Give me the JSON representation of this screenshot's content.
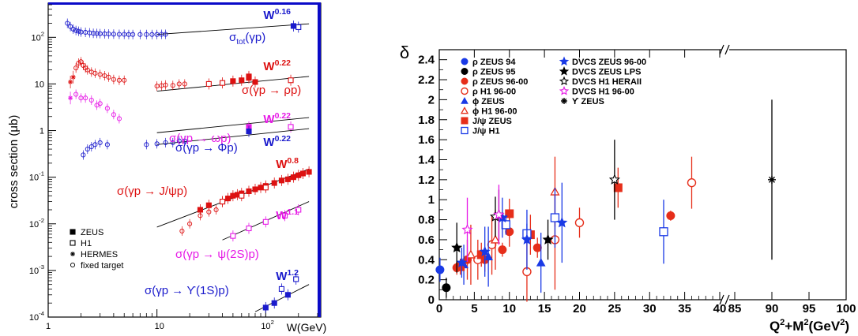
{
  "chart_data": [
    {
      "type": "scatter",
      "ylabel": "cross section (μb)",
      "xlabel": "W(GeV)",
      "x_scale": "log",
      "y_scale": "log",
      "xlim": [
        1,
        300
      ],
      "ylim": [
        0.0001,
        500
      ],
      "x_ticks": [
        {
          "v": 1,
          "label": "1"
        },
        {
          "v": 10,
          "label": "10"
        },
        {
          "v": 100,
          "label": "10",
          "sup": "2"
        }
      ],
      "y_ticks": [
        {
          "v": 0.0001,
          "label": "10",
          "sup": "-4"
        },
        {
          "v": 0.001,
          "label": "10",
          "sup": "-3"
        },
        {
          "v": 0.01,
          "label": "10",
          "sup": "-2"
        },
        {
          "v": 0.1,
          "label": "10",
          "sup": "-1"
        },
        {
          "v": 1,
          "label": "1"
        },
        {
          "v": 10,
          "label": "10"
        },
        {
          "v": 100,
          "label": "10",
          "sup": "2"
        }
      ],
      "legend": {
        "placement": "bottom-left",
        "entries": [
          {
            "marker": "filled-square",
            "label": "ZEUS"
          },
          {
            "marker": "open-square",
            "label": "H1"
          },
          {
            "marker": "star",
            "label": "HERMES"
          },
          {
            "marker": "open-circle",
            "label": "fixed target"
          }
        ]
      },
      "series": [
        {
          "process": "σ_tot(γp)",
          "label_main": "σ",
          "label_sub": "tot",
          "label_rest": "(γp)",
          "color": "#1a1acc",
          "power_label": "W",
          "power": "0.16",
          "fit": {
            "x": [
              10,
              250
            ],
            "y": [
              115,
              195
            ]
          },
          "fixed_target": [
            [
              1.5,
              200
            ],
            [
              1.6,
              170
            ],
            [
              1.7,
              150
            ],
            [
              1.8,
              140
            ],
            [
              1.9,
              135
            ],
            [
              2.0,
              130
            ],
            [
              2.2,
              128
            ],
            [
              2.4,
              125
            ],
            [
              2.6,
              122
            ],
            [
              2.8,
              121
            ],
            [
              3.0,
              120
            ],
            [
              3.3,
              119
            ],
            [
              3.6,
              118
            ],
            [
              4.0,
              117
            ],
            [
              4.5,
              116
            ],
            [
              5.0,
              116
            ],
            [
              5.5,
              115
            ],
            [
              6.0,
              115
            ],
            [
              7.0,
              115
            ],
            [
              8.0,
              115
            ],
            [
              9.0,
              115
            ],
            [
              10,
              115
            ],
            [
              11,
              116
            ],
            [
              12,
              116
            ]
          ],
          "zeus": [
            [
              180,
              175
            ]
          ],
          "h1": [
            [
              200,
              165
            ]
          ]
        },
        {
          "process": "σ(γp → ρp)",
          "label_main": "σ(γp → ρp)",
          "color": "#dd1111",
          "power_label": "W",
          "power": "0.22",
          "fit": {
            "x": [
              10,
              250
            ],
            "y": [
              7,
              14.5
            ]
          },
          "fixed_target": [
            [
              1.8,
              22
            ],
            [
              1.9,
              28
            ],
            [
              2.0,
              30
            ],
            [
              2.1,
              25
            ],
            [
              2.2,
              22
            ],
            [
              2.3,
              20
            ],
            [
              2.5,
              18
            ],
            [
              2.7,
              17
            ],
            [
              3.0,
              16
            ],
            [
              3.3,
              15
            ],
            [
              3.6,
              14
            ],
            [
              4.0,
              12.5
            ],
            [
              4.5,
              12
            ],
            [
              5.0,
              12
            ],
            [
              10,
              9
            ],
            [
              11,
              9.2
            ],
            [
              12,
              9.5
            ],
            [
              14,
              9.3
            ],
            [
              16,
              10
            ],
            [
              18,
              10
            ]
          ],
          "hermes": [
            [
              1.6,
              11
            ],
            [
              1.7,
              14
            ]
          ],
          "zeus": [
            [
              50,
              11.5
            ],
            [
              60,
              12
            ],
            [
              70,
              13.5
            ],
            [
              70,
              14.5
            ],
            [
              80,
              11
            ]
          ],
          "h1": [
            [
              30,
              10
            ],
            [
              40,
              10.5
            ],
            [
              170,
              12
            ]
          ]
        },
        {
          "process": "σ(γp → ωp)",
          "label_main": "σ(γp → ωp)",
          "color": "#e619e6",
          "power_label": "W",
          "power": "0.22",
          "fit": {
            "x": [
              10,
              250
            ],
            "y": [
              0.9,
              1.9
            ]
          },
          "fixed_target": [
            [
              1.8,
              6
            ],
            [
              2.0,
              5
            ],
            [
              2.2,
              5
            ],
            [
              2.5,
              4.5
            ],
            [
              2.8,
              3.5
            ],
            [
              3.0,
              3.8
            ],
            [
              3.5,
              3
            ],
            [
              4.0,
              2.2
            ],
            [
              4.5,
              1.8
            ]
          ],
          "hermes": [
            [
              1.6,
              5
            ]
          ],
          "zeus": [
            [
              70,
              1.2
            ]
          ],
          "h1": [
            [
              170,
              1.2
            ]
          ]
        },
        {
          "process": "σ(γp → φp)",
          "label_main": "σ(γp → Φp)",
          "color": "#1a1acc",
          "power_label": "W",
          "power": "0.22",
          "fit": {
            "x": [
              10,
              250
            ],
            "y": [
              0.5,
              1.1
            ]
          },
          "fixed_target": [
            [
              2.1,
              0.3
            ],
            [
              2.3,
              0.4
            ],
            [
              2.5,
              0.45
            ],
            [
              2.7,
              0.5
            ],
            [
              3.0,
              0.55
            ],
            [
              3.5,
              0.5
            ],
            [
              8,
              0.5
            ],
            [
              10,
              0.52
            ],
            [
              12,
              0.55
            ],
            [
              14,
              0.55
            ],
            [
              16,
              0.6
            ],
            [
              18,
              0.6
            ]
          ],
          "zeus": [
            [
              70,
              0.96
            ]
          ],
          "h1": []
        },
        {
          "process": "σ(γp → J/ψp)",
          "label_main": "σ(γp → J/ψp)",
          "color": "#dd1111",
          "power_label": "W",
          "power": "0.8",
          "fit": {
            "x": [
              10,
              250
            ],
            "y": [
              0.0085,
              0.15
            ]
          },
          "fixed_target": [
            [
              17,
              0.007
            ],
            [
              20,
              0.01
            ],
            [
              25,
              0.015
            ],
            [
              30,
              0.018
            ],
            [
              35,
              0.02
            ]
          ],
          "zeus": [
            [
              25,
              0.02
            ],
            [
              30,
              0.025
            ],
            [
              40,
              0.03
            ],
            [
              45,
              0.035
            ],
            [
              50,
              0.04
            ],
            [
              55,
              0.042
            ],
            [
              60,
              0.045
            ],
            [
              70,
              0.05
            ],
            [
              80,
              0.055
            ],
            [
              90,
              0.06
            ],
            [
              100,
              0.065
            ],
            [
              120,
              0.075
            ],
            [
              140,
              0.085
            ],
            [
              160,
              0.09
            ],
            [
              180,
              0.1
            ],
            [
              200,
              0.11
            ],
            [
              220,
              0.12
            ],
            [
              250,
              0.13
            ]
          ],
          "h1": [
            [
              40,
              0.03
            ],
            [
              60,
              0.04
            ],
            [
              100,
              0.06
            ]
          ]
        },
        {
          "process": "σ(γp → ψ(2S)p)",
          "label_main": "σ(γp → ψ(2S)p)",
          "color": "#e619e6",
          "power_label": "W",
          "power": "1.1",
          "fit": {
            "x": [
              40,
              250
            ],
            "y": [
              0.0045,
              0.03
            ]
          },
          "zeus": [],
          "h1": [
            [
              50,
              0.0055
            ],
            [
              70,
              0.008
            ],
            [
              100,
              0.011
            ],
            [
              150,
              0.015
            ],
            [
              200,
              0.02
            ]
          ]
        },
        {
          "process": "σ(γp → Υ(1S)p)",
          "label_main": "σ(γp → ϒ(1S)p)",
          "color": "#1a1acc",
          "power_label": "W",
          "power": "1.2",
          "fit": {
            "x": [
              80,
              250
            ],
            "y": [
              0.00013,
              0.0005
            ]
          },
          "zeus": [
            [
              100,
              0.00016
            ],
            [
              120,
              0.0002
            ],
            [
              160,
              0.0003
            ]
          ],
          "h1": [
            [
              140,
              0.0004
            ],
            [
              190,
              0.00065
            ]
          ]
        }
      ]
    },
    {
      "type": "scatter",
      "ylabel": "δ",
      "xlabel": "Q²+M²(GeV²)",
      "xlabel_parts": {
        "main": "Q",
        "sup1": "2",
        "mid": "+M",
        "sup2": "2",
        "rest": "(GeV",
        "sup3": "2",
        "end": ")"
      },
      "ylim": [
        0,
        2.5
      ],
      "x_break": {
        "left_range": [
          0,
          40
        ],
        "right_range": [
          80,
          100
        ]
      },
      "y_ticks": [
        "0",
        "0.2",
        "0.4",
        "0.6",
        "0.8",
        "1",
        "1.2",
        "1.4",
        "1.6",
        "1.8",
        "2",
        "2.2",
        "2.4"
      ],
      "x_ticks_left": [
        "0",
        "5",
        "10",
        "15",
        "20",
        "25",
        "30",
        "35",
        "40"
      ],
      "x_ticks_right": [
        "85",
        "90",
        "95",
        "100"
      ],
      "legend": {
        "placement": "top-left",
        "entries": [
          {
            "marker": "filled-circle",
            "color": "#1a3ae6",
            "label": "ρ ZEUS 94"
          },
          {
            "marker": "filled-circle",
            "color": "#000000",
            "label": "ρ ZEUS 95"
          },
          {
            "marker": "filled-circle",
            "color": "#e62e1a",
            "label": "ρ ZEUS 96-00"
          },
          {
            "marker": "open-circle",
            "color": "#e62e1a",
            "label": "ρ H1 96-00"
          },
          {
            "marker": "filled-triangle",
            "color": "#1a3ae6",
            "label": "ϕ ZEUS"
          },
          {
            "marker": "open-triangle",
            "color": "#e62e1a",
            "label": "ϕ H1 96-00"
          },
          {
            "marker": "filled-square",
            "color": "#e62e1a",
            "label": "J/ψ ZEUS"
          },
          {
            "marker": "open-square",
            "color": "#1a3ae6",
            "label": "J/ψ H1"
          },
          {
            "marker": "filled-star",
            "color": "#1a3ae6",
            "label": "DVCS ZEUS 96-00"
          },
          {
            "marker": "filled-star",
            "color": "#000000",
            "label": "DVCS ZEUS LPS"
          },
          {
            "marker": "open-star",
            "color": "#000000",
            "label": "DVCS H1 HERAII"
          },
          {
            "marker": "open-star",
            "color": "#e619e6",
            "label": "DVCS H1 96-00"
          },
          {
            "marker": "asterisk",
            "color": "#000000",
            "label": "ϒ ZEUS"
          }
        ]
      },
      "points": [
        {
          "s": 0,
          "x": 0.1,
          "y": 0.3,
          "e": 0.12
        },
        {
          "s": 1,
          "x": 1.0,
          "y": 0.12,
          "e": 0.1
        },
        {
          "s": 2,
          "x": 2.5,
          "y": 0.32,
          "e": 0.07
        },
        {
          "s": 2,
          "x": 4.0,
          "y": 0.4,
          "e": 0.2
        },
        {
          "s": 2,
          "x": 6.5,
          "y": 0.4,
          "e": 0.12
        },
        {
          "s": 2,
          "x": 9.0,
          "y": 0.5,
          "e": 0.07
        },
        {
          "s": 2,
          "x": 10.0,
          "y": 0.68,
          "e": 0.15
        },
        {
          "s": 2,
          "x": 14.0,
          "y": 0.52,
          "e": 0.1
        },
        {
          "s": 2,
          "x": 33.0,
          "y": 0.84,
          "e": 0.05
        },
        {
          "s": 3,
          "x": 5.5,
          "y": 0.4,
          "e": 0.2
        },
        {
          "s": 3,
          "x": 7.5,
          "y": 0.55,
          "e": 0.3
        },
        {
          "s": 3,
          "x": 12.5,
          "y": 0.28,
          "e": 0.3
        },
        {
          "s": 3,
          "x": 16.5,
          "y": 0.6,
          "e": 0.5
        },
        {
          "s": 3,
          "x": 20.0,
          "y": 0.77,
          "e": 0.15
        },
        {
          "s": 3,
          "x": 36.0,
          "y": 1.17,
          "e": 0.26
        },
        {
          "s": 4,
          "x": 3.5,
          "y": 0.35,
          "e": 0.2
        },
        {
          "s": 4,
          "x": 7.0,
          "y": 0.43,
          "e": 0.3
        },
        {
          "s": 4,
          "x": 14.5,
          "y": 0.37,
          "e": 0.3
        },
        {
          "s": 5,
          "x": 4.5,
          "y": 0.45,
          "e": 0.3
        },
        {
          "s": 5,
          "x": 8.0,
          "y": 0.6,
          "e": 0.3
        },
        {
          "s": 5,
          "x": 16.5,
          "y": 1.08,
          "e": 0.35
        },
        {
          "s": 6,
          "x": 3.0,
          "y": 0.33,
          "e": 0.08
        },
        {
          "s": 6,
          "x": 6.0,
          "y": 0.45,
          "e": 0.12
        },
        {
          "s": 6,
          "x": 10.0,
          "y": 0.86,
          "e": 0.15
        },
        {
          "s": 6,
          "x": 13.0,
          "y": 0.65,
          "e": 0.2
        },
        {
          "s": 6,
          "x": 25.5,
          "y": 1.12,
          "e": 0.2
        },
        {
          "s": 7,
          "x": 9.5,
          "y": 0.75,
          "e": 0.1
        },
        {
          "s": 7,
          "x": 12.5,
          "y": 0.66,
          "e": 0.1
        },
        {
          "s": 7,
          "x": 16.5,
          "y": 0.82,
          "e": 0.3
        },
        {
          "s": 7,
          "x": 32.0,
          "y": 0.68,
          "e": 0.32
        },
        {
          "s": 8,
          "x": 3.2,
          "y": 0.37,
          "e": 0.15
        },
        {
          "s": 8,
          "x": 6.5,
          "y": 0.48,
          "e": 0.25
        },
        {
          "s": 8,
          "x": 9.0,
          "y": 0.82,
          "e": 0.2
        },
        {
          "s": 8,
          "x": 12.5,
          "y": 0.6,
          "e": 0.3
        },
        {
          "s": 8,
          "x": 17.5,
          "y": 0.77,
          "e": 0.4
        },
        {
          "s": 9,
          "x": 2.5,
          "y": 0.52,
          "e": 0.25
        },
        {
          "s": 9,
          "x": 8.5,
          "y": 0.85,
          "e": 0.25
        },
        {
          "s": 9,
          "x": 15.5,
          "y": 0.6,
          "e": 0.2
        },
        {
          "s": 10,
          "x": 8.0,
          "y": 0.83,
          "e": 0.2
        },
        {
          "s": 10,
          "x": 25.0,
          "y": 1.2,
          "e": 0.4
        },
        {
          "s": 11,
          "x": 4.0,
          "y": 0.7,
          "e": 0.32
        },
        {
          "s": 11,
          "x": 8.5,
          "y": 0.85,
          "e": 0.3
        },
        {
          "s": 12,
          "x": 90.0,
          "y": 1.2,
          "e": 0.8
        }
      ]
    }
  ]
}
